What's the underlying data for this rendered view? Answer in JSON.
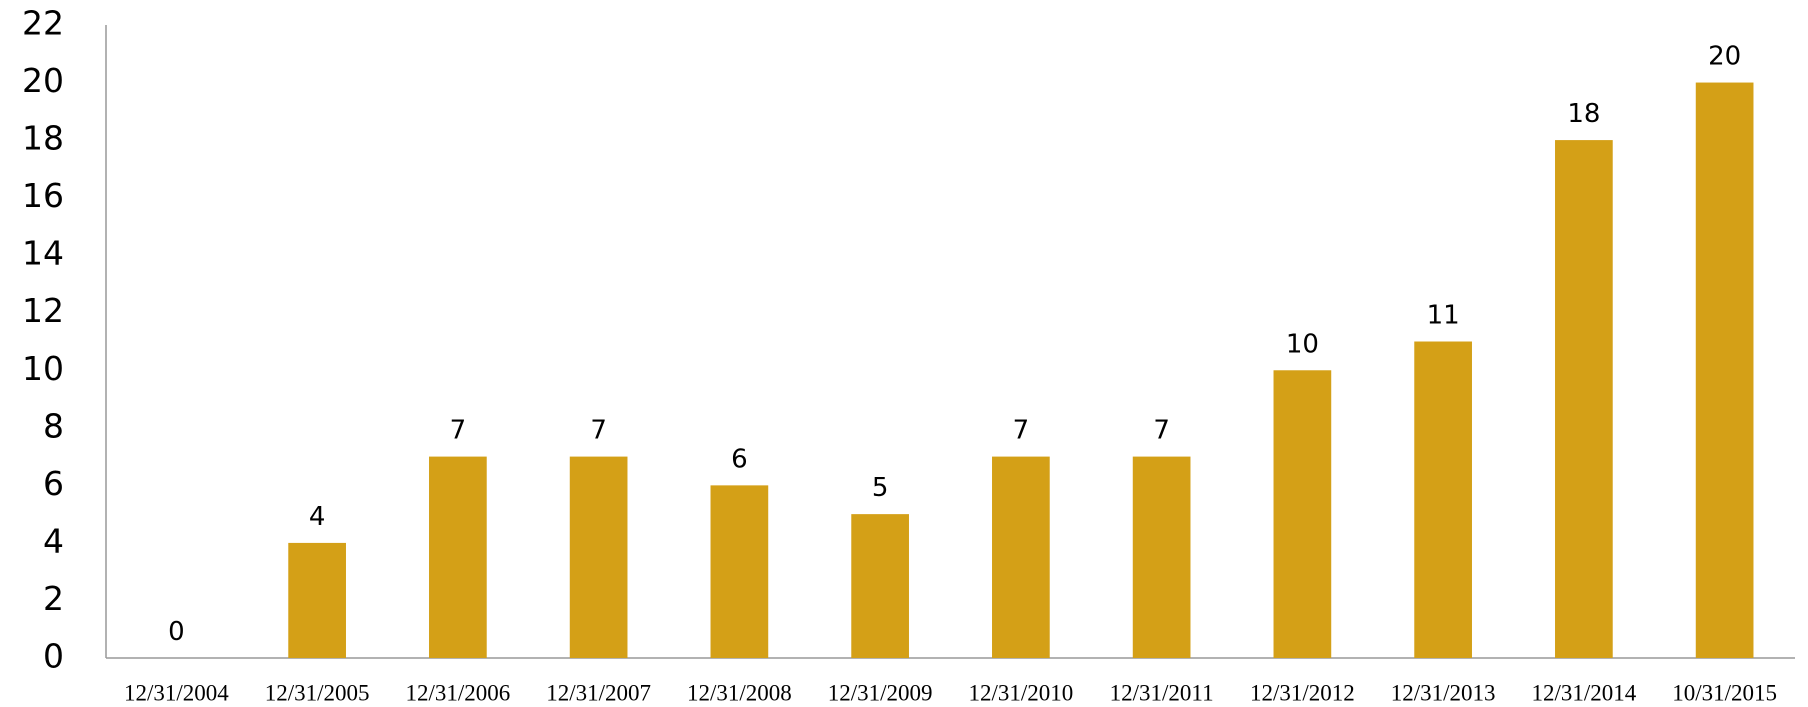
{
  "chart_data": {
    "type": "bar",
    "categories": [
      "12/31/2004",
      "12/31/2005",
      "12/31/2006",
      "12/31/2007",
      "12/31/2008",
      "12/31/2009",
      "12/31/2010",
      "12/31/2011",
      "12/31/2012",
      "12/31/2013",
      "12/31/2014",
      "10/31/2015"
    ],
    "values": [
      0,
      4,
      7,
      7,
      6,
      5,
      7,
      7,
      10,
      11,
      18,
      20
    ],
    "color": "#d4a017",
    "ylim": [
      0,
      22
    ],
    "yticks": [
      0,
      2,
      4,
      6,
      8,
      10,
      12,
      14,
      16,
      18,
      20,
      22
    ],
    "grid": false
  }
}
